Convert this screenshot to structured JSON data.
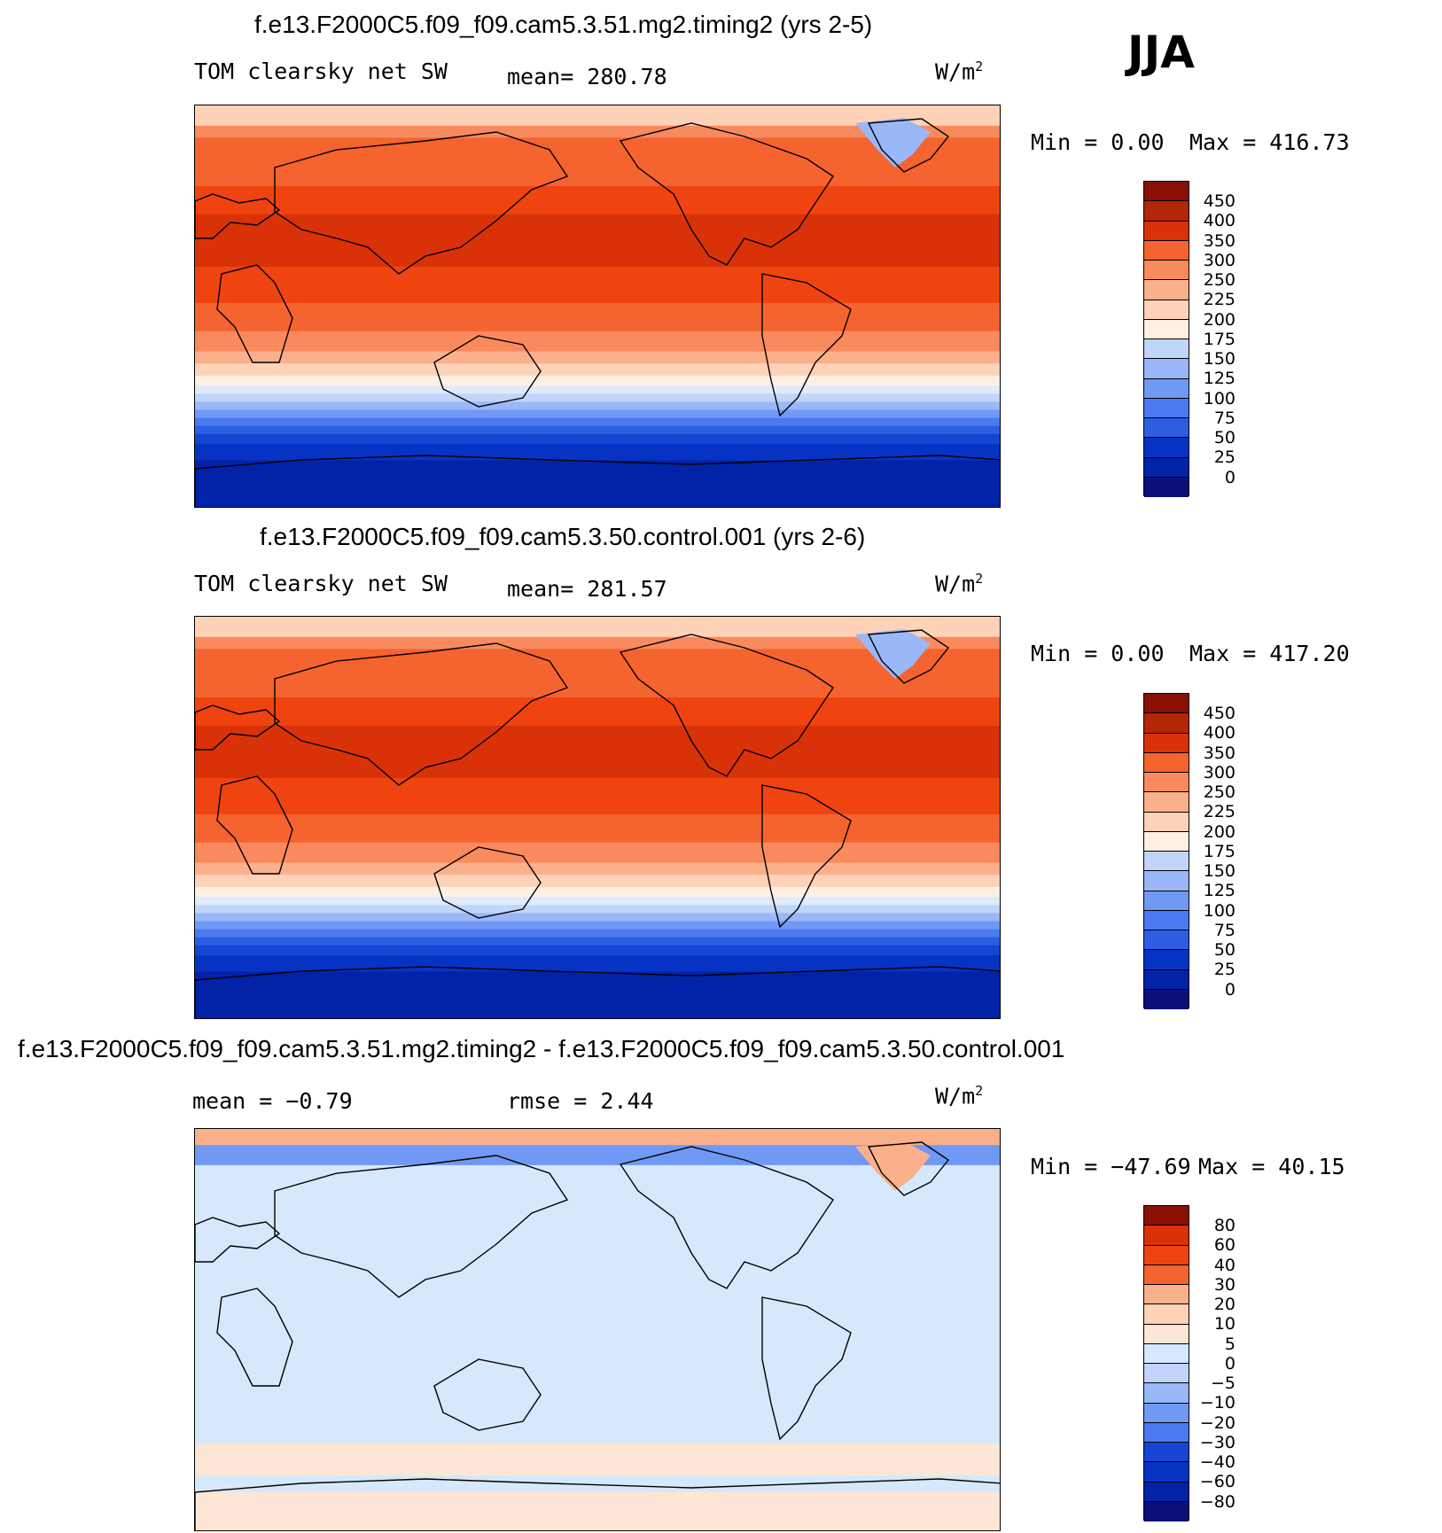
{
  "season": "JJA",
  "colors": {
    "abs_levels": [
      "#0a0f7a",
      "#0222a8",
      "#0733c4",
      "#1645d4",
      "#2c5ee2",
      "#4a7af0",
      "#7099f5",
      "#9ab8f8",
      "#c1d5fa",
      "#deebfc",
      "#fff0e2",
      "#fdd2b8",
      "#fbb08c",
      "#f98a5e",
      "#f5632f",
      "#ef4410",
      "#d93209",
      "#b32607",
      "#8a0f05"
    ],
    "diff_levels": [
      "#0a0f7a",
      "#0222a8",
      "#0733c4",
      "#1645d4",
      "#2c5ee2",
      "#4a7af0",
      "#7099f5",
      "#9ab8f8",
      "#c1d5fa",
      "#d6e8fb",
      "#fde6d6",
      "#fdd2b8",
      "#fbb08c",
      "#f98a5e",
      "#f5632f",
      "#ef4410",
      "#d93209",
      "#8a0f05"
    ],
    "land_line": "#000000"
  },
  "chart_data": [
    {
      "type": "heatmap",
      "title": "f.e13.F2000C5.f09_f09.cam5.3.51.mg2.timing2 (yrs 2-5)",
      "variable": "TOM clearsky net SW",
      "mean_text": "mean= 280.78",
      "units_prefix": "W/m",
      "units_sup": "2",
      "min_text": "Min =    0.00",
      "max_text": "Max = 416.73",
      "min": 0.0,
      "max": 416.73,
      "mean": 280.78,
      "levels": [
        "450",
        "400",
        "350",
        "300",
        "250",
        "225",
        "200",
        "175",
        "150",
        "125",
        "100",
        "75",
        "50",
        "25",
        "0"
      ]
    },
    {
      "type": "heatmap",
      "title": "f.e13.F2000C5.f09_f09.cam5.3.50.control.001 (yrs 2-6)",
      "variable": "TOM clearsky net SW",
      "mean_text": "mean= 281.57",
      "units_prefix": "W/m",
      "units_sup": "2",
      "min_text": "Min =    0.00",
      "max_text": "Max = 417.20",
      "min": 0.0,
      "max": 417.2,
      "mean": 281.57,
      "levels": [
        "450",
        "400",
        "350",
        "300",
        "250",
        "225",
        "200",
        "175",
        "150",
        "125",
        "100",
        "75",
        "50",
        "25",
        "0"
      ]
    },
    {
      "type": "heatmap",
      "title": "f.e13.F2000C5.f09_f09.cam5.3.51.mg2.timing2 - f.e13.F2000C5.f09_f09.cam5.3.50.control.001",
      "mean_text": "mean =   −0.79",
      "rmse_text": "rmse =    2.44",
      "units_prefix": "W/m",
      "units_sup": "2",
      "min_text": "Min = −47.69",
      "max_text": "Max =   40.15",
      "min": -47.69,
      "max": 40.15,
      "mean": -0.79,
      "rmse": 2.44,
      "levels": [
        "80",
        "60",
        "40",
        "30",
        "20",
        "10",
        "5",
        "0",
        "−5",
        "−10",
        "−20",
        "−30",
        "−40",
        "−60",
        "−80"
      ]
    }
  ]
}
